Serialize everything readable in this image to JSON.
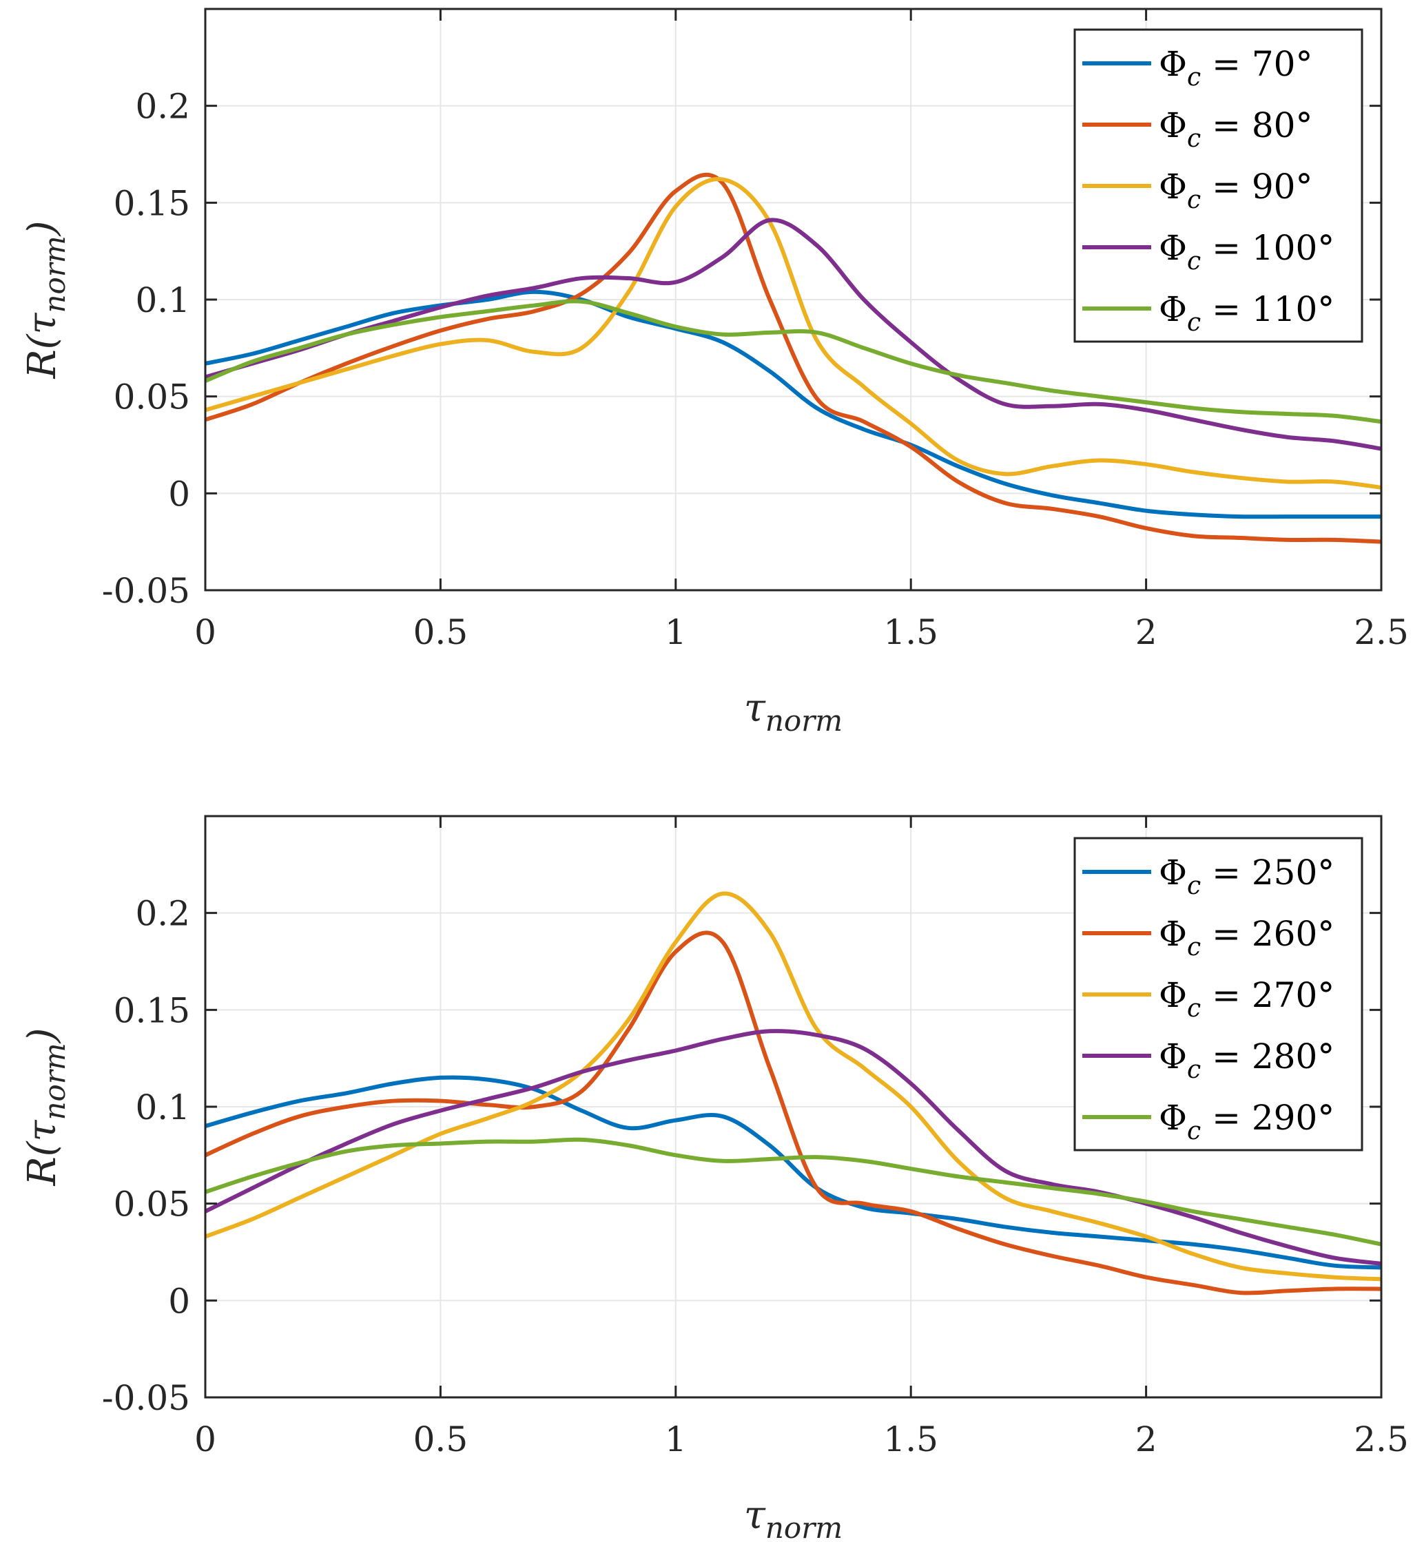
{
  "chart_data": [
    {
      "type": "line",
      "title": "",
      "xlabel": "τ_norm",
      "xlabel_main": "τ",
      "xlabel_sub": "norm",
      "ylabel": "R(τ_norm)",
      "ylabel_main": "R(τ",
      "ylabel_sub": "norm",
      "ylabel_close": ")",
      "xlim": [
        0,
        2.5
      ],
      "ylim": [
        -0.05,
        0.25
      ],
      "xticks": [
        0,
        0.5,
        1,
        1.5,
        2,
        2.5
      ],
      "xtick_labels": [
        "0",
        "0.5",
        "1",
        "1.5",
        "2",
        "2.5"
      ],
      "yticks": [
        -0.05,
        0,
        0.05,
        0.1,
        0.15,
        0.2
      ],
      "ytick_labels": [
        "-0.05",
        "0",
        "0.05",
        "0.1",
        "0.15",
        "0.2"
      ],
      "grid": true,
      "legend_position": "top-right",
      "x": [
        0,
        0.1,
        0.2,
        0.3,
        0.4,
        0.5,
        0.6,
        0.7,
        0.8,
        0.9,
        1.0,
        1.1,
        1.2,
        1.3,
        1.4,
        1.5,
        1.6,
        1.7,
        1.8,
        1.9,
        2.0,
        2.1,
        2.2,
        2.3,
        2.4,
        2.5
      ],
      "series": [
        {
          "name": "Φc = 70°",
          "legend_main": "Φ",
          "legend_sub": "c",
          "legend_value": " = 70°",
          "color": "#0072BD",
          "values": [
            0.067,
            0.072,
            0.079,
            0.086,
            0.093,
            0.097,
            0.1,
            0.104,
            0.1,
            0.091,
            0.085,
            0.078,
            0.063,
            0.044,
            0.033,
            0.025,
            0.014,
            0.005,
            -0.001,
            -0.005,
            -0.009,
            -0.011,
            -0.012,
            -0.012,
            -0.012,
            -0.012
          ]
        },
        {
          "name": "Φc = 80°",
          "legend_main": "Φ",
          "legend_sub": "c",
          "legend_value": " = 80°",
          "color": "#D95319",
          "values": [
            0.038,
            0.046,
            0.057,
            0.067,
            0.076,
            0.084,
            0.09,
            0.094,
            0.103,
            0.124,
            0.156,
            0.16,
            0.1,
            0.049,
            0.037,
            0.024,
            0.006,
            -0.005,
            -0.008,
            -0.012,
            -0.018,
            -0.022,
            -0.023,
            -0.024,
            -0.024,
            -0.025
          ]
        },
        {
          "name": "Φc = 90°",
          "legend_main": "Φ",
          "legend_sub": "c",
          "legend_value": " = 90°",
          "color": "#EDB120",
          "values": [
            0.043,
            0.05,
            0.057,
            0.064,
            0.071,
            0.077,
            0.079,
            0.073,
            0.075,
            0.104,
            0.148,
            0.162,
            0.14,
            0.079,
            0.055,
            0.036,
            0.017,
            0.01,
            0.014,
            0.017,
            0.015,
            0.011,
            0.008,
            0.006,
            0.006,
            0.003
          ]
        },
        {
          "name": "Φc = 100°",
          "legend_main": "Φ",
          "legend_sub": "c",
          "legend_value": " = 100°",
          "color": "#7E2F8E",
          "values": [
            0.06,
            0.067,
            0.074,
            0.082,
            0.089,
            0.096,
            0.102,
            0.106,
            0.111,
            0.111,
            0.109,
            0.122,
            0.141,
            0.128,
            0.1,
            0.078,
            0.059,
            0.046,
            0.045,
            0.046,
            0.043,
            0.038,
            0.033,
            0.029,
            0.027,
            0.023
          ]
        },
        {
          "name": "Φc = 110°",
          "legend_main": "Φ",
          "legend_sub": "c",
          "legend_value": " = 110°",
          "color": "#77AC30",
          "values": [
            0.058,
            0.068,
            0.075,
            0.082,
            0.087,
            0.091,
            0.094,
            0.097,
            0.099,
            0.093,
            0.086,
            0.082,
            0.083,
            0.083,
            0.075,
            0.067,
            0.061,
            0.057,
            0.053,
            0.05,
            0.047,
            0.044,
            0.042,
            0.041,
            0.04,
            0.037
          ]
        }
      ]
    },
    {
      "type": "line",
      "title": "",
      "xlabel": "τ_norm",
      "xlabel_main": "τ",
      "xlabel_sub": "norm",
      "ylabel": "R(τ_norm)",
      "ylabel_main": "R(τ",
      "ylabel_sub": "norm",
      "ylabel_close": ")",
      "xlim": [
        0,
        2.5
      ],
      "ylim": [
        -0.05,
        0.25
      ],
      "xticks": [
        0,
        0.5,
        1,
        1.5,
        2,
        2.5
      ],
      "xtick_labels": [
        "0",
        "0.5",
        "1",
        "1.5",
        "2",
        "2.5"
      ],
      "yticks": [
        -0.05,
        0,
        0.05,
        0.1,
        0.15,
        0.2
      ],
      "ytick_labels": [
        "-0.05",
        "0",
        "0.05",
        "0.1",
        "0.15",
        "0.2"
      ],
      "grid": true,
      "legend_position": "top-right",
      "x": [
        0,
        0.1,
        0.2,
        0.3,
        0.4,
        0.5,
        0.6,
        0.7,
        0.8,
        0.9,
        1.0,
        1.1,
        1.2,
        1.3,
        1.4,
        1.5,
        1.6,
        1.7,
        1.8,
        1.9,
        2.0,
        2.1,
        2.2,
        2.3,
        2.4,
        2.5
      ],
      "series": [
        {
          "name": "Φc = 250°",
          "legend_main": "Φ",
          "legend_sub": "c",
          "legend_value": " = 250°",
          "color": "#0072BD",
          "values": [
            0.09,
            0.097,
            0.103,
            0.107,
            0.112,
            0.115,
            0.114,
            0.109,
            0.098,
            0.089,
            0.093,
            0.095,
            0.08,
            0.058,
            0.048,
            0.045,
            0.042,
            0.038,
            0.035,
            0.033,
            0.031,
            0.029,
            0.026,
            0.022,
            0.018,
            0.017
          ]
        },
        {
          "name": "Φc = 260°",
          "legend_main": "Φ",
          "legend_sub": "c",
          "legend_value": " = 260°",
          "color": "#D95319",
          "values": [
            0.075,
            0.086,
            0.095,
            0.1,
            0.103,
            0.103,
            0.101,
            0.1,
            0.108,
            0.14,
            0.18,
            0.185,
            0.12,
            0.058,
            0.05,
            0.046,
            0.037,
            0.029,
            0.023,
            0.018,
            0.012,
            0.008,
            0.004,
            0.005,
            0.006,
            0.006
          ]
        },
        {
          "name": "Φc = 270°",
          "legend_main": "Φ",
          "legend_sub": "c",
          "legend_value": " = 270°",
          "color": "#EDB120",
          "values": [
            0.033,
            0.042,
            0.053,
            0.064,
            0.075,
            0.086,
            0.094,
            0.103,
            0.118,
            0.145,
            0.185,
            0.21,
            0.19,
            0.14,
            0.12,
            0.1,
            0.072,
            0.053,
            0.046,
            0.04,
            0.033,
            0.024,
            0.017,
            0.014,
            0.012,
            0.011
          ]
        },
        {
          "name": "Φc = 280°",
          "legend_main": "Φ",
          "legend_sub": "c",
          "legend_value": " = 280°",
          "color": "#7E2F8E",
          "values": [
            0.046,
            0.058,
            0.07,
            0.081,
            0.091,
            0.098,
            0.104,
            0.11,
            0.118,
            0.124,
            0.129,
            0.135,
            0.139,
            0.137,
            0.13,
            0.112,
            0.088,
            0.067,
            0.06,
            0.056,
            0.05,
            0.043,
            0.035,
            0.028,
            0.022,
            0.019
          ]
        },
        {
          "name": "Φc = 290°",
          "legend_main": "Φ",
          "legend_sub": "c",
          "legend_value": " = 290°",
          "color": "#77AC30",
          "values": [
            0.056,
            0.064,
            0.071,
            0.077,
            0.08,
            0.081,
            0.082,
            0.082,
            0.083,
            0.08,
            0.075,
            0.072,
            0.073,
            0.074,
            0.072,
            0.068,
            0.064,
            0.061,
            0.058,
            0.055,
            0.051,
            0.046,
            0.042,
            0.038,
            0.034,
            0.029
          ]
        }
      ]
    }
  ]
}
